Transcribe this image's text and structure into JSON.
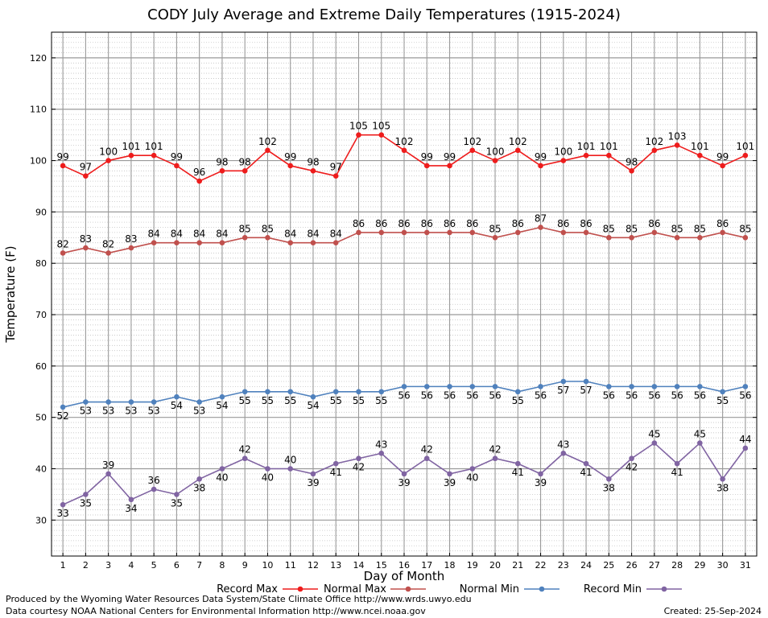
{
  "chart_data": {
    "type": "line",
    "title": "CODY July Average and Extreme Daily Temperatures (1915-2024)",
    "xlabel": "Day of Month",
    "ylabel": "Temperature (F)",
    "x": [
      1,
      2,
      3,
      4,
      5,
      6,
      7,
      8,
      9,
      10,
      11,
      12,
      13,
      14,
      15,
      16,
      17,
      18,
      19,
      20,
      21,
      22,
      23,
      24,
      25,
      26,
      27,
      28,
      29,
      30,
      31
    ],
    "xlim": [
      0.5,
      31.5
    ],
    "ylim": [
      23,
      125
    ],
    "yticks": [
      30,
      40,
      50,
      60,
      70,
      80,
      90,
      100,
      110,
      120
    ],
    "grid": true,
    "legend_position": "bottom",
    "series": [
      {
        "name": "Record Max",
        "color": "#ee1c1c",
        "label_position": "above",
        "values": [
          99,
          97,
          100,
          101,
          101,
          99,
          96,
          98,
          98,
          102,
          99,
          98,
          97,
          105,
          105,
          102,
          99,
          99,
          102,
          100,
          102,
          99,
          100,
          101,
          101,
          98,
          102,
          103,
          101,
          99,
          101
        ]
      },
      {
        "name": "Normal Max",
        "color": "#c0504d",
        "label_position": "above",
        "values": [
          82,
          83,
          82,
          83,
          84,
          84,
          84,
          84,
          85,
          85,
          84,
          84,
          84,
          86,
          86,
          86,
          86,
          86,
          86,
          85,
          86,
          87,
          86,
          86,
          85,
          85,
          86,
          85,
          85,
          86,
          85
        ]
      },
      {
        "name": "Normal Min",
        "color": "#4f81bd",
        "label_position": "below",
        "values": [
          52,
          53,
          53,
          53,
          53,
          54,
          53,
          54,
          55,
          55,
          55,
          54,
          55,
          55,
          55,
          56,
          56,
          56,
          56,
          56,
          55,
          56,
          57,
          57,
          56,
          56,
          56,
          56,
          56,
          55,
          56
        ]
      },
      {
        "name": "Record Min",
        "color": "#8064a2",
        "label_position": "alternate",
        "values": [
          33,
          35,
          39,
          34,
          36,
          35,
          38,
          40,
          42,
          40,
          40,
          39,
          41,
          42,
          43,
          39,
          42,
          39,
          40,
          42,
          41,
          39,
          43,
          41,
          38,
          42,
          45,
          41,
          45,
          38,
          44
        ]
      }
    ]
  },
  "footer": {
    "credit_line1": "Produced by the Wyoming Water Resources Data System/State Climate Office http://www.wrds.uwyo.edu",
    "credit_line2": "Data courtesy NOAA National Centers for Environmental Information http://www.ncei.noaa.gov",
    "created": "Created:  25-Sep-2024"
  }
}
